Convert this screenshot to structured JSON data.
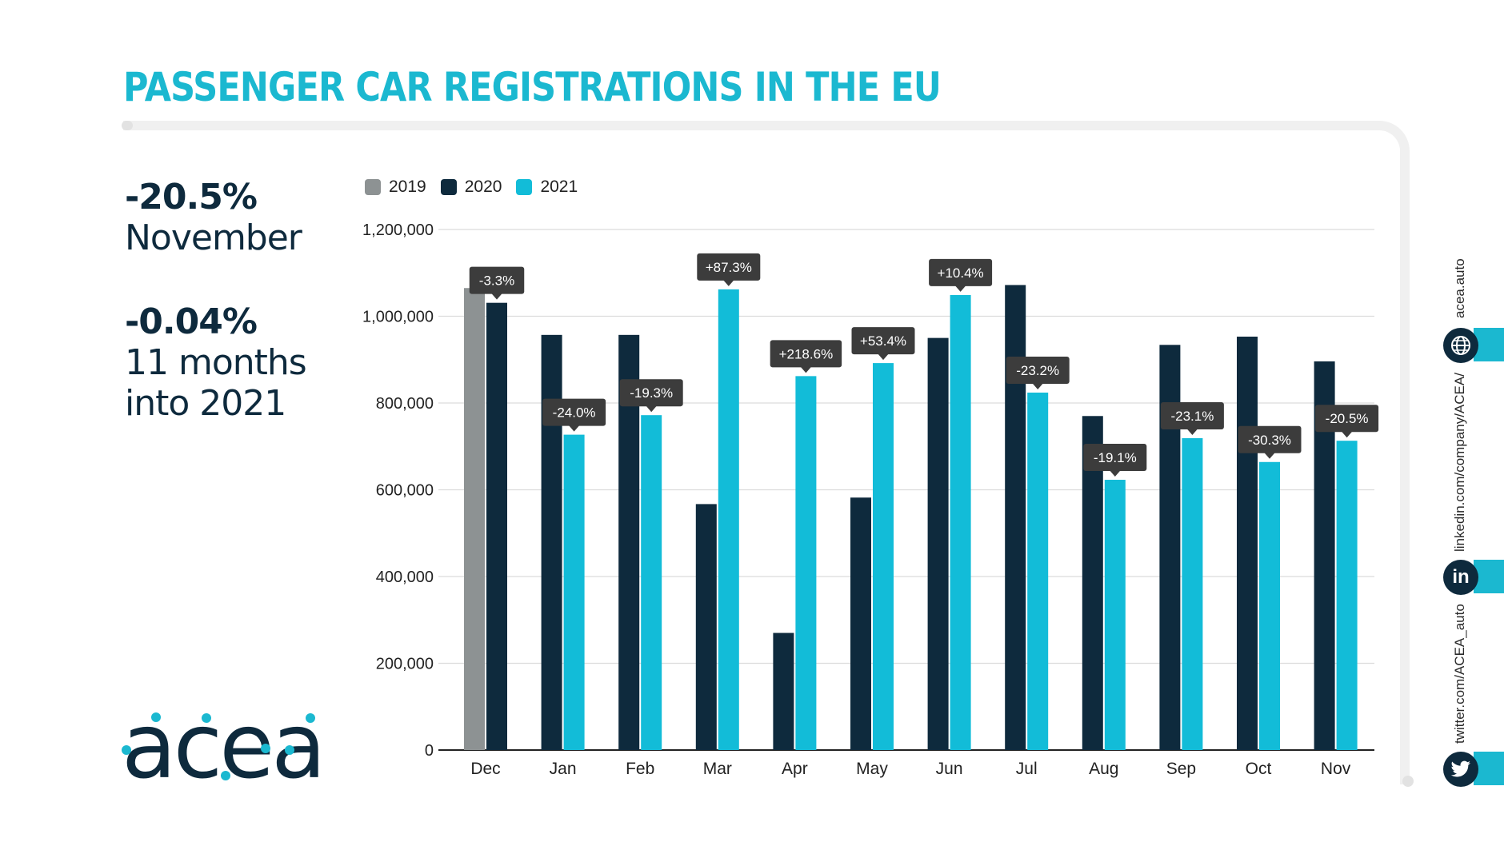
{
  "title": "PASSENGER CAR REGISTRATIONS IN THE EU",
  "kpis": [
    {
      "value": "-20.5%",
      "label_lines": [
        "November"
      ]
    },
    {
      "value": "-0.04%",
      "label_lines": [
        "11 months",
        "into 2021"
      ]
    }
  ],
  "logo": {
    "text": "acea",
    "color": "#0e2a3d",
    "dot_color": "#1bb8d0"
  },
  "social": {
    "website": "acea.auto",
    "linkedin": "linkedin.com/company/ACEA/",
    "twitter": "twitter.com/ACEA_auto",
    "linkedin_icon_text": "in"
  },
  "colors": {
    "y2019": "#8d9293",
    "y2020": "#0e2a3d",
    "y2021": "#12bcd8",
    "accent": "#1bb8d0"
  },
  "chart_data": {
    "type": "bar",
    "legend": [
      "2019",
      "2020",
      "2021"
    ],
    "categories": [
      "Dec",
      "Jan",
      "Feb",
      "Mar",
      "Apr",
      "May",
      "Jun",
      "Jul",
      "Aug",
      "Sep",
      "Oct",
      "Nov"
    ],
    "ylim": [
      0,
      1200000
    ],
    "yticks": [
      0,
      200000,
      400000,
      600000,
      800000,
      1000000,
      1200000
    ],
    "ytick_labels": [
      "0",
      "200,000",
      "400,000",
      "600,000",
      "800,000",
      "1,000,000",
      "1,200,000"
    ],
    "series": [
      {
        "name": "2019",
        "values": [
          1065000,
          null,
          null,
          null,
          null,
          null,
          null,
          null,
          null,
          null,
          null,
          null
        ]
      },
      {
        "name": "2020",
        "values": [
          null,
          957000,
          957000,
          567000,
          270000,
          582000,
          950000,
          1072000,
          770000,
          934000,
          953000,
          896000
        ]
      },
      {
        "name": "2021",
        "values": [
          null,
          727000,
          772000,
          1062000,
          862000,
          892000,
          1049000,
          824000,
          623000,
          719000,
          664000,
          713000
        ]
      }
    ],
    "dec_2020_value": 1031000,
    "annotations": [
      "-3.3%",
      "-24.0%",
      "-19.3%",
      "+87.3%",
      "+218.6%",
      "+53.4%",
      "+10.4%",
      "-23.2%",
      "-19.1%",
      "-23.1%",
      "-30.3%",
      "-20.5%"
    ]
  }
}
